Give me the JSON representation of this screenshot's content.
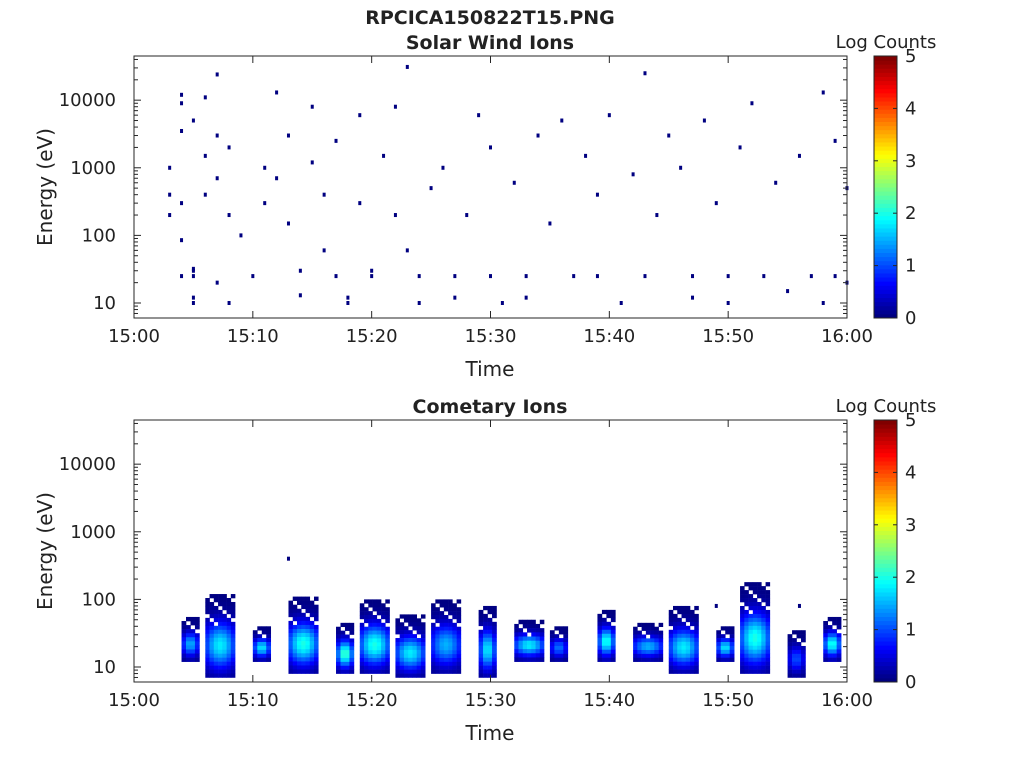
{
  "figure": {
    "title": "RPCICA150822T15.PNG"
  },
  "chart_data": [
    {
      "type": "heatmap",
      "title": "Solar Wind Ions",
      "xlabel": "Time",
      "ylabel": "Energy (eV)",
      "x_ticks": [
        "15:00",
        "15:10",
        "15:20",
        "15:30",
        "15:40",
        "15:50",
        "16:00"
      ],
      "y_ticks": [
        "10",
        "100",
        "1000",
        "10000"
      ],
      "y_scale": "log",
      "ylim": [
        6,
        45000
      ],
      "xlim": [
        "15:00",
        "16:00"
      ],
      "colorbar": {
        "label": "Log Counts",
        "ticks": [
          "0",
          "1",
          "2",
          "3",
          "4",
          "5"
        ],
        "range": [
          0,
          5
        ],
        "colormap": "jet"
      },
      "colors": {
        "low": "#00008f",
        "high": "#800000"
      },
      "pattern": "sparse low-count detections, mostly log count ~0, scattered 10 eV to 30000 eV with denser bands below 40 eV",
      "points": [
        [
          "15:03",
          1000,
          0
        ],
        [
          "15:03",
          400,
          0
        ],
        [
          "15:03",
          200,
          0
        ],
        [
          "15:04",
          300,
          0
        ],
        [
          "15:04",
          25,
          0
        ],
        [
          "15:04",
          85,
          0
        ],
        [
          "15:04",
          3500,
          0
        ],
        [
          "15:04",
          12000,
          0
        ],
        [
          "15:04",
          9000,
          0
        ],
        [
          "15:05",
          30,
          0
        ],
        [
          "15:05",
          32,
          0
        ],
        [
          "15:05",
          25,
          0
        ],
        [
          "15:05",
          10,
          0
        ],
        [
          "15:05",
          12,
          0
        ],
        [
          "15:05",
          5000,
          0
        ],
        [
          "15:06",
          11000,
          0
        ],
        [
          "15:06",
          1500,
          0
        ],
        [
          "15:06",
          400,
          0
        ],
        [
          "15:07",
          24000,
          0
        ],
        [
          "15:07",
          700,
          0
        ],
        [
          "15:07",
          3000,
          0
        ],
        [
          "15:07",
          20,
          0
        ],
        [
          "15:08",
          2000,
          0
        ],
        [
          "15:08",
          200,
          0
        ],
        [
          "15:08",
          10,
          0
        ],
        [
          "15:09",
          100,
          0
        ],
        [
          "15:10",
          25,
          0
        ],
        [
          "15:11",
          1000,
          0
        ],
        [
          "15:11",
          300,
          0
        ],
        [
          "15:12",
          13000,
          0
        ],
        [
          "15:12",
          700,
          0
        ],
        [
          "15:13",
          3000,
          0
        ],
        [
          "15:13",
          150,
          0
        ],
        [
          "15:14",
          30,
          0
        ],
        [
          "15:14",
          13,
          0
        ],
        [
          "15:15",
          8000,
          0
        ],
        [
          "15:15",
          1200,
          0
        ],
        [
          "15:16",
          400,
          0
        ],
        [
          "15:16",
          60,
          0
        ],
        [
          "15:17",
          25,
          0
        ],
        [
          "15:17",
          2500,
          0
        ],
        [
          "15:18",
          10,
          0
        ],
        [
          "15:18",
          12,
          0
        ],
        [
          "15:19",
          300,
          0
        ],
        [
          "15:19",
          6000,
          0
        ],
        [
          "15:20",
          30,
          0
        ],
        [
          "15:20",
          25,
          0
        ],
        [
          "15:21",
          1500,
          0
        ],
        [
          "15:22",
          8000,
          0
        ],
        [
          "15:22",
          200,
          0
        ],
        [
          "15:23",
          31000,
          0
        ],
        [
          "15:23",
          60,
          0
        ],
        [
          "15:24",
          10,
          0
        ],
        [
          "15:24",
          25,
          0
        ],
        [
          "15:25",
          500,
          0
        ],
        [
          "15:26",
          1000,
          0
        ],
        [
          "15:27",
          25,
          0
        ],
        [
          "15:27",
          12,
          0
        ],
        [
          "15:28",
          200,
          0
        ],
        [
          "15:29",
          6000,
          0
        ],
        [
          "15:30",
          2000,
          0
        ],
        [
          "15:30",
          25,
          0
        ],
        [
          "15:31",
          10,
          0
        ],
        [
          "15:32",
          600,
          0
        ],
        [
          "15:33",
          25,
          0
        ],
        [
          "15:33",
          12,
          0
        ],
        [
          "15:34",
          3000,
          0
        ],
        [
          "15:35",
          150,
          0
        ],
        [
          "15:36",
          5000,
          0
        ],
        [
          "15:37",
          25,
          0
        ],
        [
          "15:38",
          1500,
          0
        ],
        [
          "15:39",
          400,
          0
        ],
        [
          "15:39",
          25,
          0
        ],
        [
          "15:40",
          6000,
          0
        ],
        [
          "15:41",
          10,
          0
        ],
        [
          "15:42",
          800,
          0
        ],
        [
          "15:43",
          25000,
          0
        ],
        [
          "15:43",
          25,
          0
        ],
        [
          "15:44",
          200,
          0
        ],
        [
          "15:45",
          3000,
          0
        ],
        [
          "15:46",
          1000,
          0
        ],
        [
          "15:47",
          25,
          0
        ],
        [
          "15:47",
          12,
          0
        ],
        [
          "15:48",
          5000,
          0
        ],
        [
          "15:49",
          300,
          0
        ],
        [
          "15:50",
          10,
          0
        ],
        [
          "15:50",
          25,
          0
        ],
        [
          "15:51",
          2000,
          0
        ],
        [
          "15:52",
          9000,
          0
        ],
        [
          "15:53",
          25,
          0
        ],
        [
          "15:54",
          600,
          0
        ],
        [
          "15:55",
          15,
          0
        ],
        [
          "15:56",
          1500,
          0
        ],
        [
          "15:57",
          25,
          0
        ],
        [
          "15:58",
          13000,
          0
        ],
        [
          "15:58",
          10,
          0
        ],
        [
          "15:59",
          25,
          0
        ],
        [
          "15:59",
          2500,
          0
        ],
        [
          "16:00",
          500,
          0
        ],
        [
          "16:00",
          20,
          0
        ]
      ]
    },
    {
      "type": "heatmap",
      "title": "Cometary Ions",
      "xlabel": "Time",
      "ylabel": "Energy (eV)",
      "x_ticks": [
        "15:00",
        "15:10",
        "15:20",
        "15:30",
        "15:40",
        "15:50",
        "16:00"
      ],
      "y_ticks": [
        "10",
        "100",
        "1000",
        "10000"
      ],
      "y_scale": "log",
      "ylim": [
        6,
        45000
      ],
      "xlim": [
        "15:00",
        "16:00"
      ],
      "colorbar": {
        "label": "Log Counts",
        "ticks": [
          "0",
          "1",
          "2",
          "3",
          "4",
          "5"
        ],
        "range": [
          0,
          5
        ],
        "colormap": "jet"
      },
      "colors": {
        "low": "#00008f",
        "high": "#800000"
      },
      "pattern": "recurring bursts roughly every 3 minutes, energies ~7-120 eV, peak log counts ~2 near 15-30 eV",
      "bursts": [
        {
          "start": "15:04",
          "end": "15:05",
          "e_min": 12,
          "e_max": 55,
          "peak": 1.5
        },
        {
          "start": "15:06",
          "end": "15:08",
          "e_min": 7,
          "e_max": 120,
          "peak": 1.8
        },
        {
          "start": "15:10",
          "end": "15:11",
          "e_min": 12,
          "e_max": 40,
          "peak": 1.8
        },
        {
          "start": "15:13",
          "end": "15:15",
          "e_min": 8,
          "e_max": 110,
          "peak": 2.0
        },
        {
          "start": "15:17",
          "end": "15:18",
          "e_min": 8,
          "e_max": 45,
          "peak": 2.2
        },
        {
          "start": "15:19",
          "end": "15:21",
          "e_min": 8,
          "e_max": 100,
          "peak": 2.0
        },
        {
          "start": "15:22",
          "end": "15:24",
          "e_min": 7,
          "e_max": 60,
          "peak": 1.8
        },
        {
          "start": "15:25",
          "end": "15:27",
          "e_min": 8,
          "e_max": 100,
          "peak": 1.5
        },
        {
          "start": "15:29",
          "end": "15:30",
          "e_min": 7,
          "e_max": 80,
          "peak": 1.8
        },
        {
          "start": "15:32",
          "end": "15:34",
          "e_min": 12,
          "e_max": 50,
          "peak": 1.8
        },
        {
          "start": "15:35",
          "end": "15:36",
          "e_min": 12,
          "e_max": 40,
          "peak": 1.2
        },
        {
          "start": "15:39",
          "end": "15:40",
          "e_min": 12,
          "e_max": 70,
          "peak": 2.0
        },
        {
          "start": "15:42",
          "end": "15:44",
          "e_min": 12,
          "e_max": 45,
          "peak": 1.5
        },
        {
          "start": "15:45",
          "end": "15:47",
          "e_min": 8,
          "e_max": 80,
          "peak": 1.8
        },
        {
          "start": "15:49",
          "end": "15:50",
          "e_min": 12,
          "e_max": 40,
          "peak": 1.8
        },
        {
          "start": "15:51",
          "end": "15:53",
          "e_min": 8,
          "e_max": 180,
          "peak": 2.0
        },
        {
          "start": "15:55",
          "end": "15:56",
          "e_min": 7,
          "e_max": 35,
          "peak": 1.0
        },
        {
          "start": "15:58",
          "end": "15:59",
          "e_min": 12,
          "e_max": 55,
          "peak": 2.0
        }
      ],
      "points": [
        [
          "15:13",
          400,
          0
        ],
        [
          "15:49",
          80,
          0
        ],
        [
          "15:56",
          80,
          0
        ]
      ]
    }
  ]
}
